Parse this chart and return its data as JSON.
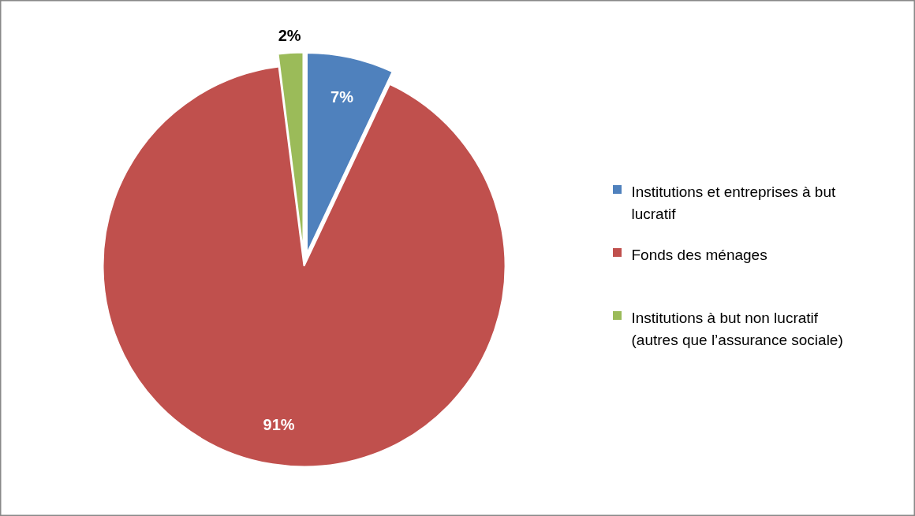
{
  "chart_data": {
    "type": "pie",
    "categories": [
      "Institutions et entreprises à but lucratif",
      "Fonds des ménages",
      "Institutions à but non lucratif (autres que l’assurance sociale)"
    ],
    "values": [
      7,
      91,
      2
    ],
    "colors": [
      "#4f81bd",
      "#c0504d",
      "#9bbb59"
    ],
    "value_labels": [
      "7%",
      "91%",
      "2%"
    ],
    "legend": "right"
  }
}
